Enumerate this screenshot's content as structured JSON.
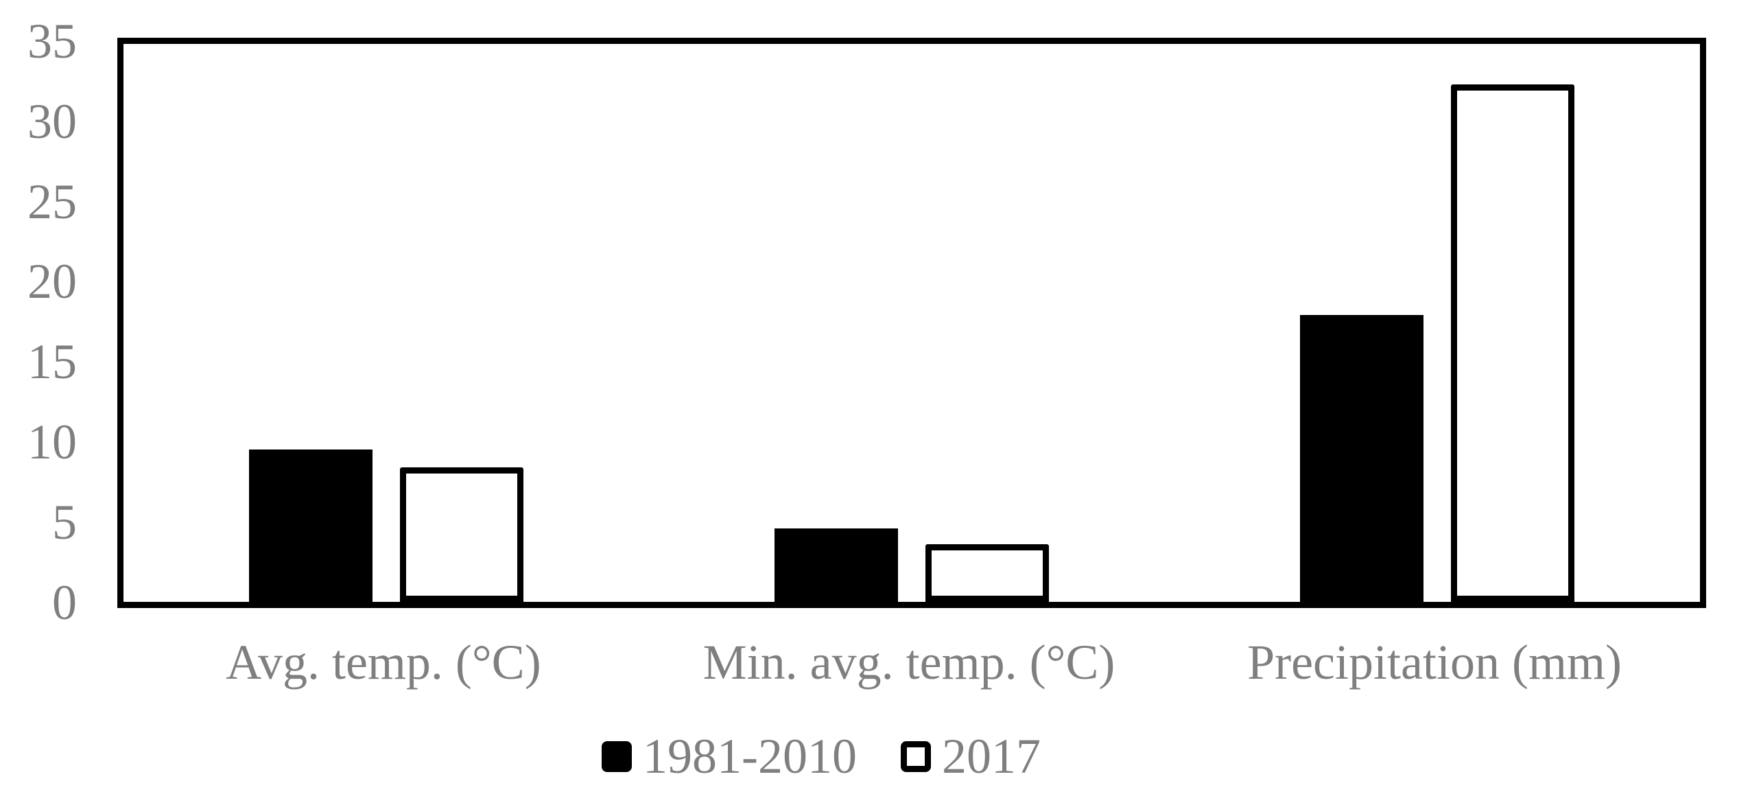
{
  "chart_data": {
    "type": "bar",
    "title": "",
    "xlabel": "",
    "ylabel": "",
    "categories": [
      "Avg. temp. (°C)",
      "Min. avg. temp. (°C)",
      "Precipitation (mm)"
    ],
    "series": [
      {
        "name": "1981-2010",
        "values": [
          9.5,
          4.6,
          17.9
        ],
        "fill": "#000000",
        "stroke": "#000000"
      },
      {
        "name": "2017",
        "values": [
          8.4,
          3.6,
          32.3
        ],
        "fill": "#ffffff",
        "stroke": "#000000"
      }
    ],
    "ylim": [
      0,
      35
    ],
    "yticks": [
      0,
      5,
      10,
      15,
      20,
      25,
      30,
      35
    ],
    "grid": false,
    "legend_position": "bottom-center",
    "colors": {
      "label_text": "#7f7f7f",
      "axis_and_bars": "#000000",
      "background": "#ffffff"
    }
  }
}
